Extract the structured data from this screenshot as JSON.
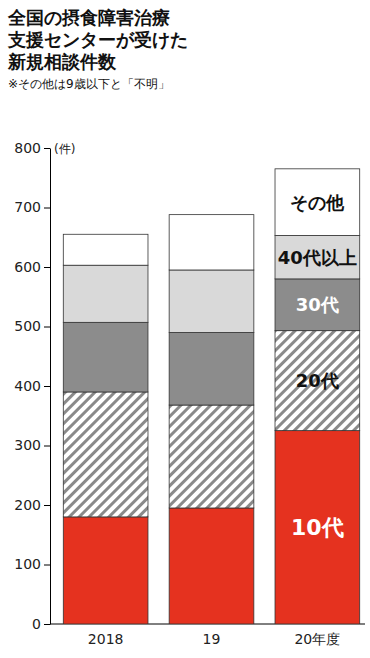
{
  "chart_data": {
    "type": "bar",
    "stacked": true,
    "title": "全国の摂食障害治療\n支援センターが受けた\n新規相談件数",
    "subtitle": "※その他は9歳以下と「不明」",
    "y_label": "(件)",
    "categories": [
      "2018",
      "19",
      "20年度"
    ],
    "series": [
      {
        "name": "10代",
        "color": "#e5321f",
        "values": [
          180,
          195,
          325
        ]
      },
      {
        "name": "20代",
        "color": "#8a8a8a",
        "values": [
          210,
          173,
          168
        ]
      },
      {
        "name": "30代",
        "color": "#8c8c8c",
        "values": [
          117,
          122,
          87
        ]
      },
      {
        "name": "40代以上",
        "color": "#d9d9d9",
        "values": [
          96,
          105,
          73
        ]
      },
      {
        "name": "その他",
        "color": "#ffffff",
        "values": [
          52,
          93,
          112
        ]
      }
    ],
    "ylim": [
      0,
      800
    ],
    "yticks": [
      0,
      100,
      200,
      300,
      400,
      500,
      600,
      700,
      800
    ],
    "grid": false,
    "data_labels": false
  }
}
